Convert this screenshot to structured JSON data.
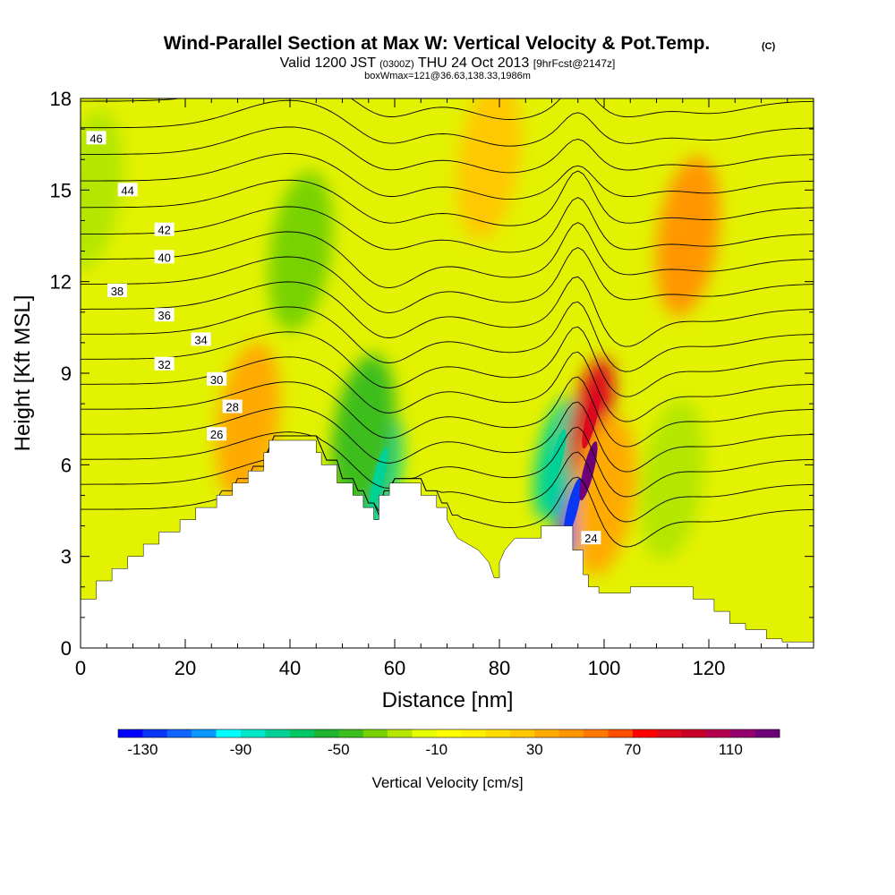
{
  "title": "Wind-Parallel Section at Max W: Vertical Velocity & Pot.Temp.",
  "copyright": "(C)",
  "subtitle": {
    "part1": "Valid 1200 JST",
    "utc": "(0300Z)",
    "part2": "THU 24 Oct 2013",
    "fcst": "[9hrFcst@2147z]"
  },
  "info_line": "boxWmax=121@36.63,138.33,1986m",
  "colorbar_label": "Vertical Velocity [cm/s]",
  "colorbar": {
    "colors": [
      "#0000ff",
      "#0a36f5",
      "#1264ff",
      "#0a96ff",
      "#00ffff",
      "#00e6c8",
      "#00d296",
      "#00c864",
      "#1eb432",
      "#3cbe1e",
      "#78d200",
      "#b4e600",
      "#e6ff00",
      "#ffff00",
      "#fff000",
      "#ffdc00",
      "#ffc800",
      "#ffaa00",
      "#ff9600",
      "#ff7800",
      "#ff5000",
      "#ff0000",
      "#dc0a1e",
      "#c80028",
      "#b40050",
      "#96006e",
      "#6e0078"
    ],
    "labels": [
      "-130",
      "-90",
      "-50",
      "-10",
      "30",
      "70",
      "110"
    ],
    "label_values": [
      -130,
      -90,
      -50,
      -10,
      30,
      70,
      110
    ],
    "min": -140,
    "max": 130
  },
  "chart_data": {
    "type": "heatmap",
    "description_type": "vertical cross-section: filled vertical velocity with potential temperature contours",
    "xlabel": "Distance [nm]",
    "ylabel": "Height [Kft MSL]",
    "xlim": [
      0,
      140
    ],
    "ylim": [
      0,
      18
    ],
    "xticks": [
      0,
      20,
      40,
      60,
      80,
      100,
      120
    ],
    "yticks": [
      0,
      3,
      6,
      9,
      12,
      15,
      18
    ],
    "terrain": [
      [
        0,
        1.6
      ],
      [
        3,
        1.6
      ],
      [
        3,
        2.2
      ],
      [
        6,
        2.2
      ],
      [
        6,
        2.6
      ],
      [
        9,
        2.6
      ],
      [
        9,
        3.0
      ],
      [
        12,
        3.0
      ],
      [
        12,
        3.4
      ],
      [
        15,
        3.4
      ],
      [
        15,
        3.8
      ],
      [
        19,
        3.8
      ],
      [
        19,
        4.2
      ],
      [
        22,
        4.2
      ],
      [
        22,
        4.6
      ],
      [
        26,
        4.6
      ],
      [
        26,
        5.0
      ],
      [
        29,
        5.0
      ],
      [
        29,
        5.4
      ],
      [
        32,
        5.4
      ],
      [
        32,
        5.8
      ],
      [
        35,
        5.8
      ],
      [
        35,
        6.4
      ],
      [
        36,
        6.4
      ],
      [
        36,
        6.8
      ],
      [
        45,
        6.8
      ],
      [
        45,
        6.4
      ],
      [
        46,
        6.4
      ],
      [
        46,
        6.0
      ],
      [
        49,
        6.0
      ],
      [
        49,
        5.4
      ],
      [
        52,
        5.4
      ],
      [
        52,
        5.0
      ],
      [
        54,
        5.0
      ],
      [
        54,
        4.6
      ],
      [
        56,
        4.6
      ],
      [
        56,
        4.2
      ],
      [
        57,
        4.2
      ],
      [
        57,
        5.0
      ],
      [
        59,
        5.0
      ],
      [
        59,
        5.4
      ],
      [
        65,
        5.4
      ],
      [
        65,
        5.0
      ],
      [
        68,
        5.0
      ],
      [
        68,
        4.6
      ],
      [
        70,
        4.6
      ],
      [
        70,
        4.2
      ],
      [
        72,
        3.6
      ],
      [
        74,
        3.4
      ],
      [
        76,
        3.2
      ],
      [
        78,
        2.8
      ],
      [
        79,
        2.3
      ],
      [
        80,
        2.3
      ],
      [
        80,
        2.8
      ],
      [
        81,
        3.2
      ],
      [
        82,
        3.4
      ],
      [
        83,
        3.6
      ],
      [
        85,
        3.6
      ],
      [
        88,
        3.6
      ],
      [
        88,
        4.0
      ],
      [
        94,
        4.0
      ],
      [
        94,
        3.2
      ],
      [
        96,
        3.2
      ],
      [
        96,
        2.4
      ],
      [
        97,
        2.4
      ],
      [
        97,
        2.0
      ],
      [
        99,
        2.0
      ],
      [
        99,
        1.8
      ],
      [
        105,
        1.8
      ],
      [
        105,
        2.0
      ],
      [
        117,
        2.0
      ],
      [
        117,
        1.6
      ],
      [
        121,
        1.6
      ],
      [
        121,
        1.2
      ],
      [
        124,
        1.2
      ],
      [
        124,
        0.8
      ],
      [
        127,
        0.8
      ],
      [
        127,
        0.6
      ],
      [
        131,
        0.6
      ],
      [
        131,
        0.3
      ],
      [
        134,
        0.3
      ],
      [
        134,
        0.2
      ],
      [
        140,
        0.2
      ]
    ],
    "w_features": [
      {
        "x": 94,
        "z": 4.6,
        "w": -130
      },
      {
        "x": 91,
        "z": 6.2,
        "w": -80
      },
      {
        "x": 97,
        "z": 5.8,
        "w": 121
      },
      {
        "x": 97.5,
        "z": 7.5,
        "w": 80
      },
      {
        "x": 57,
        "z": 5.6,
        "w": -80
      },
      {
        "x": 54,
        "z": 7.0,
        "w": -50
      },
      {
        "x": 42,
        "z": 13.0,
        "w": -40
      },
      {
        "x": 116,
        "z": 13.5,
        "w": 40
      },
      {
        "x": 32,
        "z": 7.4,
        "w": 30
      },
      {
        "x": 78,
        "z": 16.0,
        "w": 20
      },
      {
        "x": 2,
        "z": 15.0,
        "w": -30
      },
      {
        "x": 100,
        "z": 5.0,
        "w": 30
      },
      {
        "x": 113,
        "z": 5.5,
        "w": -30
      }
    ],
    "theta_contours": [
      {
        "value": 24,
        "label_x": 97.5,
        "label_z": 3.6
      },
      {
        "value": 26,
        "label_x": 26,
        "label_z": 7.0
      },
      {
        "value": 28,
        "label_x": 29,
        "label_z": 7.9
      },
      {
        "value": 30,
        "label_x": 26,
        "label_z": 8.8
      },
      {
        "value": 32,
        "label_x": 16,
        "label_z": 9.3
      },
      {
        "value": 34,
        "label_x": 23,
        "label_z": 10.1
      },
      {
        "value": 36,
        "label_x": 16,
        "label_z": 10.9
      },
      {
        "value": 38,
        "label_x": 7,
        "label_z": 11.7
      },
      {
        "value": 40,
        "label_x": 16,
        "label_z": 12.8
      },
      {
        "value": 42,
        "label_x": 16,
        "label_z": 13.7
      },
      {
        "value": 44,
        "label_x": 9,
        "label_z": 15.0
      },
      {
        "value": 46,
        "label_x": 3,
        "label_z": 16.7
      }
    ]
  }
}
